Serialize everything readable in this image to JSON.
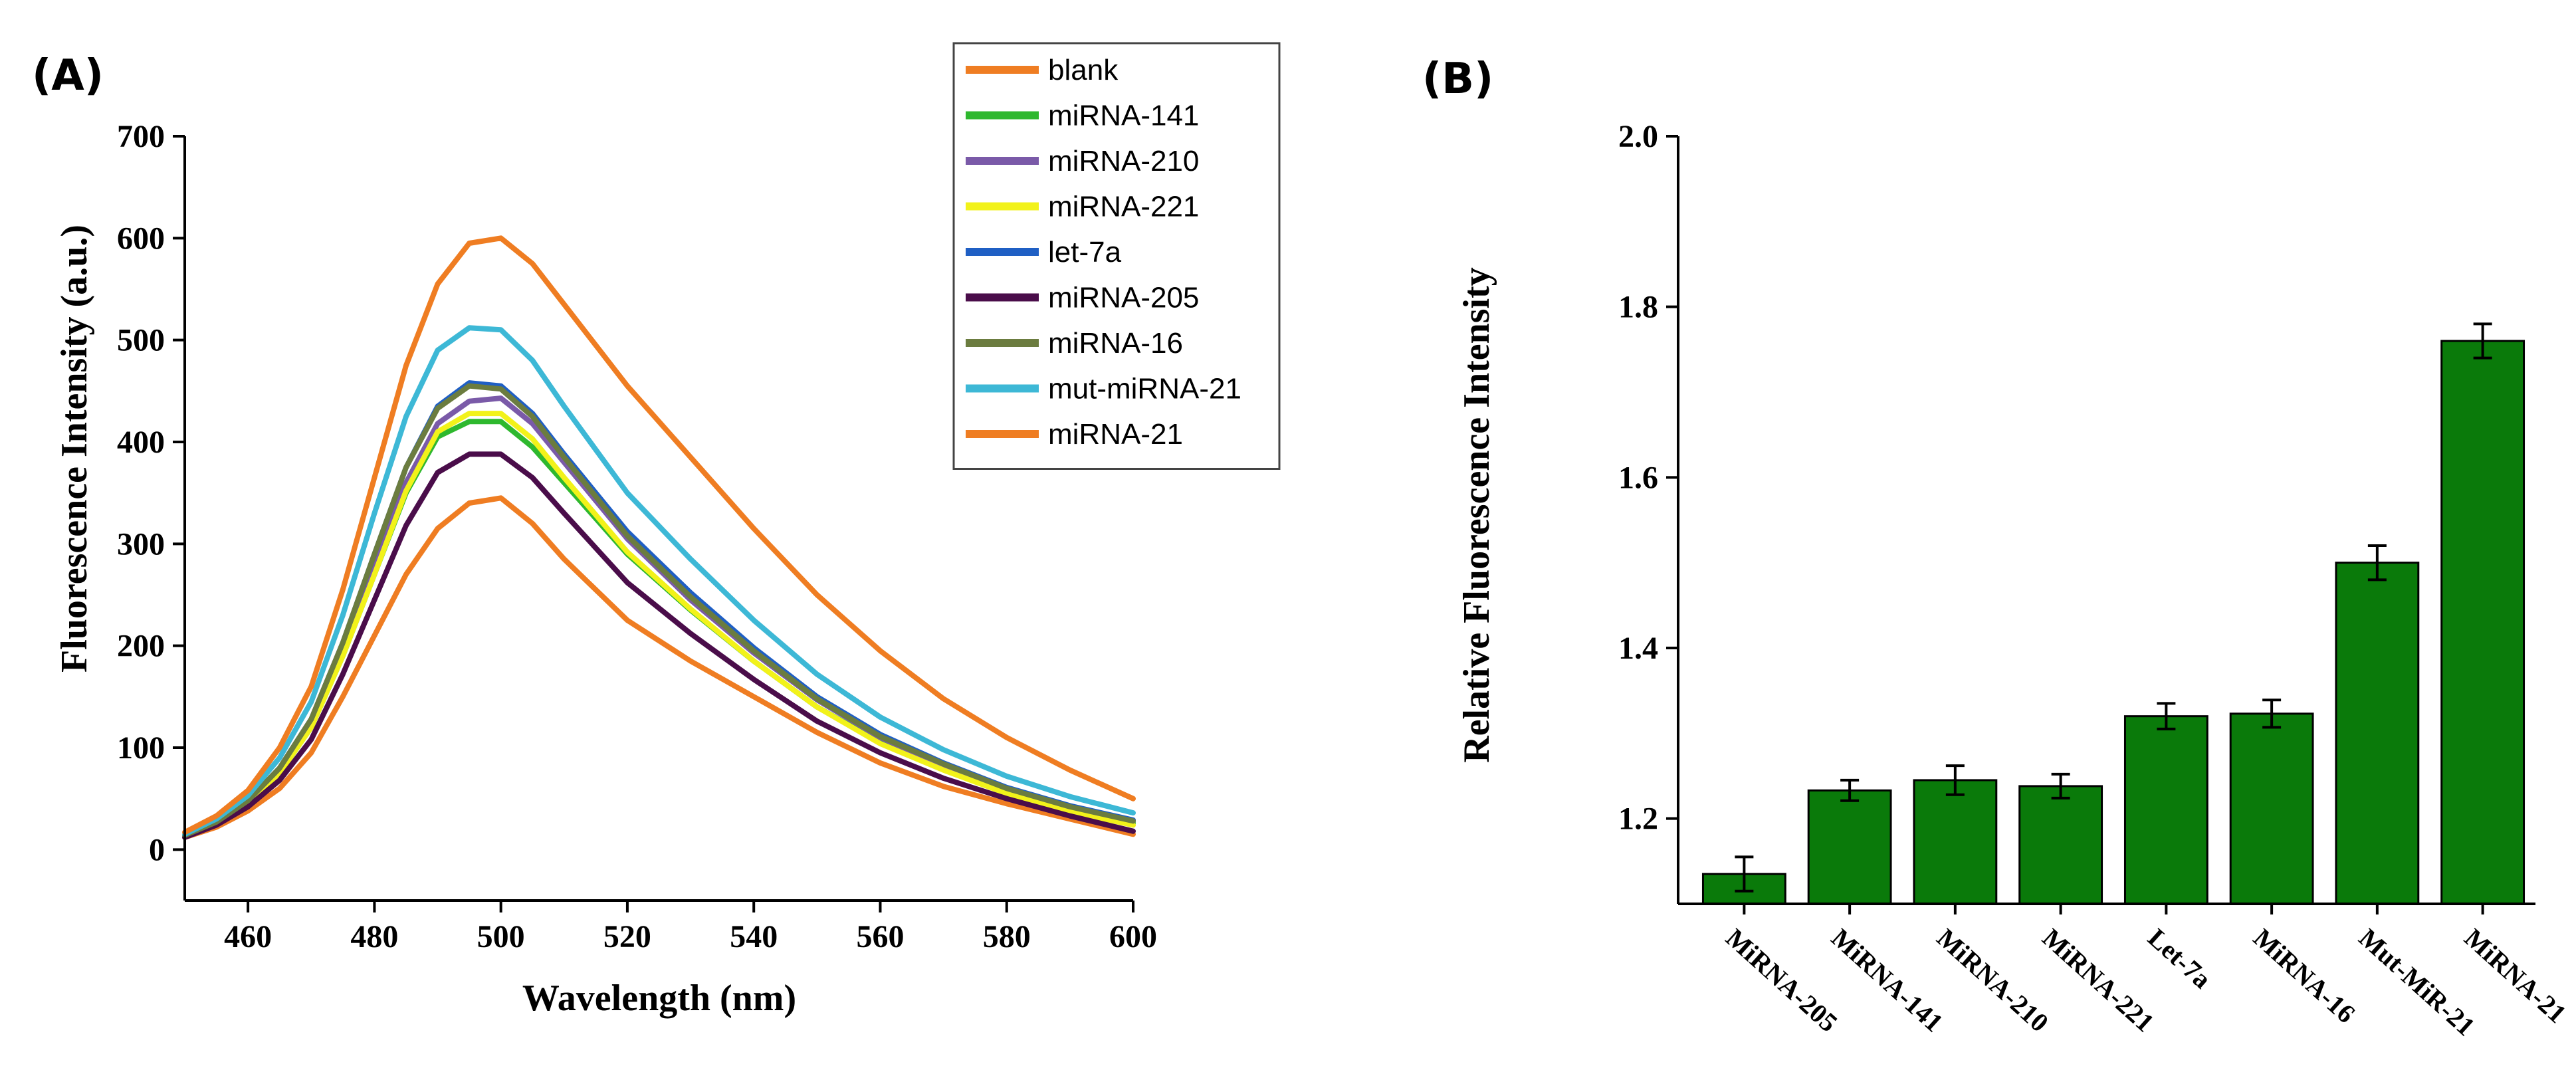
{
  "panels": {
    "a": {
      "label": "(A)"
    },
    "b": {
      "label": "(B)"
    }
  },
  "chart_data": [
    {
      "type": "line",
      "title": "",
      "xlabel": "Wavelength (nm)",
      "ylabel": "Fluorescence Intensity (a.u.)",
      "xlim": [
        450,
        600
      ],
      "ylim": [
        -50,
        700
      ],
      "xticks": [
        "460",
        "480",
        "500",
        "520",
        "540",
        "560",
        "580",
        "600"
      ],
      "yticks": [
        "0",
        "100",
        "200",
        "300",
        "400",
        "500",
        "600",
        "700"
      ],
      "xtick_values": [
        460,
        480,
        500,
        520,
        540,
        560,
        580,
        600
      ],
      "ytick_values": [
        0,
        100,
        200,
        300,
        400,
        500,
        600,
        700
      ],
      "legend_position": "top-right",
      "x": [
        450,
        455,
        460,
        465,
        470,
        475,
        480,
        485,
        490,
        495,
        500,
        505,
        510,
        520,
        530,
        540,
        550,
        560,
        570,
        580,
        590,
        600
      ],
      "series": [
        {
          "name": "blank",
          "color": "#ef7d22",
          "values": [
            12,
            22,
            38,
            60,
            95,
            150,
            210,
            270,
            315,
            340,
            345,
            320,
            285,
            225,
            185,
            150,
            115,
            85,
            62,
            45,
            30,
            15
          ]
        },
        {
          "name": "miRNA-141",
          "color": "#2eb82e",
          "values": [
            13,
            26,
            45,
            75,
            120,
            190,
            270,
            350,
            405,
            420,
            420,
            395,
            360,
            290,
            235,
            185,
            140,
            105,
            80,
            57,
            40,
            26
          ]
        },
        {
          "name": "miRNA-210",
          "color": "#7a5aa8",
          "values": [
            13,
            26,
            46,
            77,
            123,
            195,
            278,
            360,
            418,
            440,
            443,
            418,
            380,
            305,
            245,
            193,
            147,
            110,
            83,
            60,
            42,
            28
          ]
        },
        {
          "name": "miRNA-221",
          "color": "#f2f21a",
          "values": [
            13,
            26,
            45,
            75,
            120,
            190,
            270,
            352,
            410,
            428,
            428,
            403,
            365,
            292,
            236,
            185,
            140,
            104,
            78,
            55,
            37,
            24
          ]
        },
        {
          "name": "let-7a",
          "color": "#1f5fc4",
          "values": [
            14,
            27,
            48,
            80,
            128,
            203,
            290,
            375,
            435,
            458,
            455,
            428,
            388,
            312,
            252,
            198,
            150,
            113,
            85,
            61,
            43,
            29
          ]
        },
        {
          "name": "miRNA-205",
          "color": "#4a0d4a",
          "values": [
            12,
            24,
            42,
            68,
            108,
            172,
            245,
            318,
            370,
            388,
            388,
            365,
            330,
            262,
            212,
            167,
            126,
            95,
            70,
            50,
            33,
            18
          ]
        },
        {
          "name": "miRNA-16",
          "color": "#6b7c3f",
          "values": [
            14,
            27,
            48,
            80,
            128,
            203,
            290,
            375,
            433,
            455,
            452,
            425,
            385,
            308,
            248,
            195,
            148,
            111,
            84,
            60,
            42,
            28
          ]
        },
        {
          "name": "mut-miRNA-21",
          "color": "#3db8d6",
          "values": [
            15,
            30,
            53,
            90,
            145,
            230,
            330,
            425,
            490,
            512,
            510,
            480,
            435,
            350,
            285,
            225,
            172,
            130,
            98,
            72,
            52,
            36
          ]
        },
        {
          "name": "miRNA-21",
          "color": "#ef7d22",
          "values": [
            17,
            33,
            58,
            100,
            160,
            255,
            365,
            475,
            555,
            595,
            600,
            575,
            535,
            455,
            385,
            315,
            250,
            195,
            148,
            110,
            78,
            50
          ]
        }
      ]
    },
    {
      "type": "bar",
      "title": "",
      "xlabel": "",
      "ylabel": "Relative Fluorescence Intensity",
      "ylim": [
        1.1,
        2.0
      ],
      "yticks": [
        "1.2",
        "1.4",
        "1.6",
        "1.8",
        "2.0"
      ],
      "ytick_values": [
        1.2,
        1.4,
        1.6,
        1.8,
        2.0
      ],
      "bar_color": "#0a7a0a",
      "categories": [
        "MiRNA-205",
        "MiRNA-141",
        "MiRNA-210",
        "MiRNA-221",
        "Let-7a",
        "MiRNA-16",
        "Mut-MiR-21",
        "MiRNA-21"
      ],
      "values": [
        1.135,
        1.233,
        1.245,
        1.238,
        1.32,
        1.323,
        1.5,
        1.76
      ],
      "errors": [
        0.02,
        0.012,
        0.017,
        0.014,
        0.015,
        0.016,
        0.02,
        0.02
      ]
    }
  ]
}
